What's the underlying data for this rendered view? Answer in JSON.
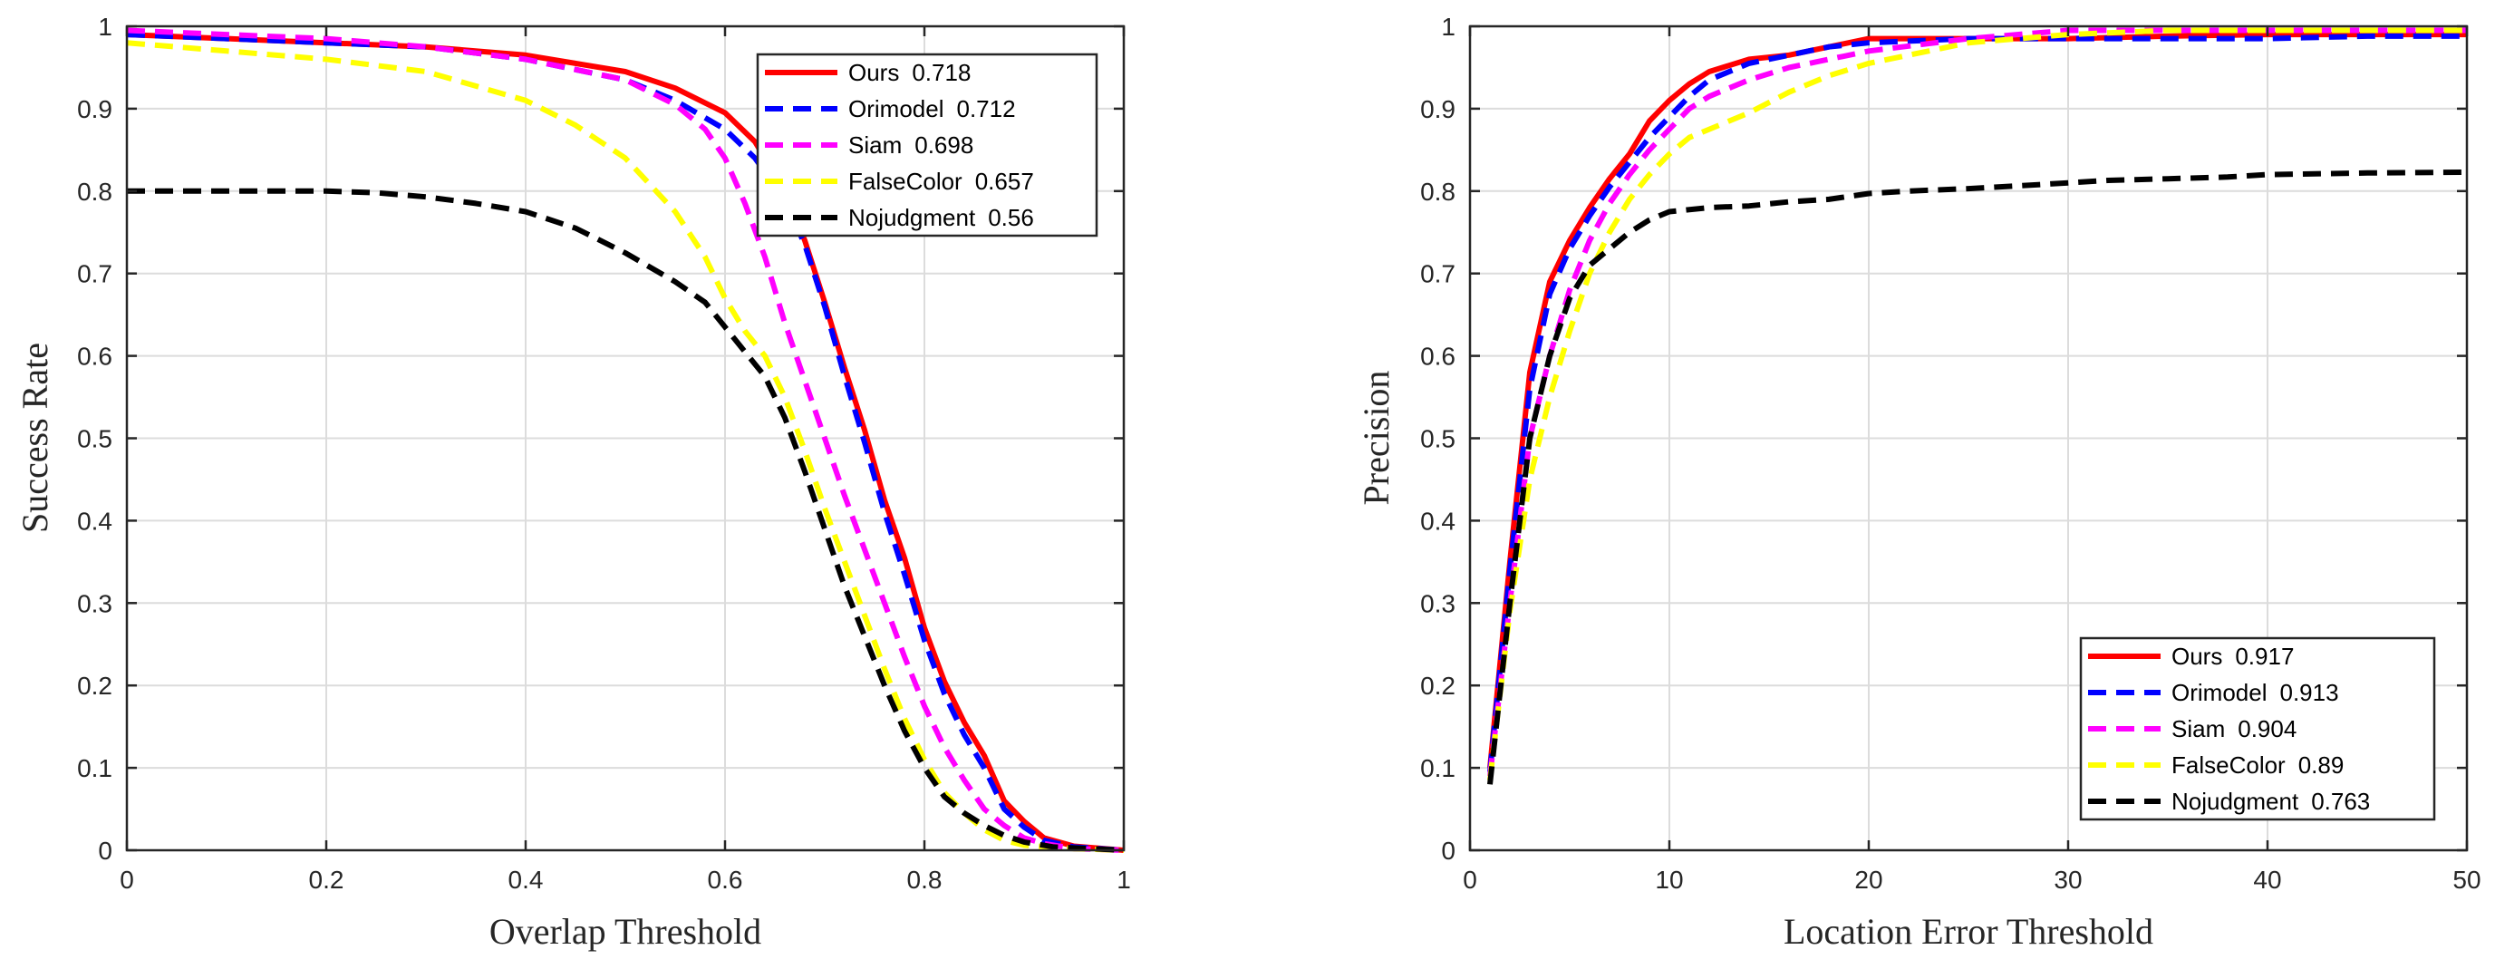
{
  "chart_data": [
    {
      "type": "line",
      "xlabel": "Overlap Threshold",
      "ylabel": "Success Rate",
      "xlim": [
        0,
        1
      ],
      "ylim": [
        0,
        1
      ],
      "xticks": [
        0,
        0.2,
        0.4,
        0.6,
        0.8,
        1
      ],
      "xtick_labels": [
        "0",
        "0.2",
        "0.4",
        "0.6",
        "0.8",
        "1"
      ],
      "yticks": [
        0,
        0.1,
        0.2,
        0.3,
        0.4,
        0.5,
        0.6,
        0.7,
        0.8,
        0.9,
        1
      ],
      "ytick_labels": [
        "0",
        "0.1",
        "0.2",
        "0.3",
        "0.4",
        "0.5",
        "0.6",
        "0.7",
        "0.8",
        "0.9",
        "1"
      ],
      "grid": true,
      "legend_position": "top-right",
      "series": [
        {
          "name": "Ours",
          "score": "0.718",
          "color": "#ff0000",
          "dash": "solid",
          "x": [
            0,
            0.1,
            0.2,
            0.3,
            0.4,
            0.5,
            0.55,
            0.6,
            0.63,
            0.66,
            0.68,
            0.7,
            0.72,
            0.74,
            0.76,
            0.78,
            0.8,
            0.82,
            0.84,
            0.86,
            0.88,
            0.9,
            0.92,
            0.95,
            1
          ],
          "y": [
            0.99,
            0.985,
            0.98,
            0.975,
            0.965,
            0.945,
            0.925,
            0.895,
            0.86,
            0.8,
            0.74,
            0.665,
            0.585,
            0.51,
            0.425,
            0.355,
            0.27,
            0.205,
            0.155,
            0.115,
            0.06,
            0.035,
            0.015,
            0.005,
            0
          ]
        },
        {
          "name": "Orimodel",
          "score": "0.712",
          "color": "#0000ff",
          "dash": "dashed",
          "x": [
            0,
            0.1,
            0.2,
            0.3,
            0.4,
            0.5,
            0.55,
            0.6,
            0.63,
            0.66,
            0.68,
            0.7,
            0.72,
            0.74,
            0.76,
            0.78,
            0.8,
            0.82,
            0.84,
            0.86,
            0.88,
            0.9,
            0.92,
            0.95,
            1
          ],
          "y": [
            0.99,
            0.985,
            0.98,
            0.975,
            0.96,
            0.935,
            0.91,
            0.875,
            0.84,
            0.79,
            0.735,
            0.66,
            0.575,
            0.495,
            0.41,
            0.335,
            0.255,
            0.19,
            0.14,
            0.1,
            0.05,
            0.028,
            0.012,
            0.004,
            0
          ]
        },
        {
          "name": "Siam",
          "score": "0.698",
          "color": "#ff00ff",
          "dash": "dashed",
          "x": [
            0,
            0.1,
            0.2,
            0.3,
            0.4,
            0.5,
            0.55,
            0.58,
            0.6,
            0.62,
            0.64,
            0.66,
            0.68,
            0.7,
            0.72,
            0.74,
            0.76,
            0.78,
            0.8,
            0.82,
            0.84,
            0.86,
            0.88,
            0.9,
            0.92,
            0.95,
            1
          ],
          "y": [
            0.995,
            0.99,
            0.985,
            0.975,
            0.96,
            0.935,
            0.905,
            0.875,
            0.84,
            0.785,
            0.72,
            0.64,
            0.57,
            0.5,
            0.43,
            0.365,
            0.3,
            0.235,
            0.175,
            0.125,
            0.085,
            0.05,
            0.03,
            0.015,
            0.008,
            0.002,
            0
          ]
        },
        {
          "name": "FalseColor",
          "score": "0.657",
          "color": "#ffff00",
          "dash": "dashed",
          "x": [
            0,
            0.1,
            0.2,
            0.3,
            0.4,
            0.45,
            0.5,
            0.55,
            0.58,
            0.6,
            0.62,
            0.64,
            0.66,
            0.68,
            0.7,
            0.72,
            0.74,
            0.76,
            0.78,
            0.8,
            0.82,
            0.84,
            0.86,
            0.88,
            0.9,
            0.95,
            1
          ],
          "y": [
            0.98,
            0.97,
            0.96,
            0.945,
            0.91,
            0.88,
            0.84,
            0.775,
            0.72,
            0.67,
            0.63,
            0.6,
            0.55,
            0.485,
            0.415,
            0.35,
            0.285,
            0.22,
            0.16,
            0.11,
            0.07,
            0.045,
            0.025,
            0.012,
            0.006,
            0.002,
            0
          ]
        },
        {
          "name": "Nojudgment",
          "score": "0.56",
          "color": "#000000",
          "dash": "dashed",
          "x": [
            0,
            0.1,
            0.2,
            0.25,
            0.3,
            0.35,
            0.4,
            0.45,
            0.5,
            0.55,
            0.58,
            0.6,
            0.62,
            0.64,
            0.66,
            0.68,
            0.7,
            0.72,
            0.74,
            0.76,
            0.78,
            0.8,
            0.82,
            0.84,
            0.86,
            0.88,
            0.9,
            0.93,
            1
          ],
          "y": [
            0.8,
            0.8,
            0.8,
            0.798,
            0.793,
            0.785,
            0.775,
            0.755,
            0.725,
            0.69,
            0.665,
            0.635,
            0.605,
            0.575,
            0.525,
            0.46,
            0.39,
            0.32,
            0.26,
            0.2,
            0.145,
            0.1,
            0.065,
            0.045,
            0.03,
            0.018,
            0.01,
            0.004,
            0
          ]
        }
      ]
    },
    {
      "type": "line",
      "xlabel": "Location Error Threshold",
      "ylabel": "Precision",
      "xlim": [
        0,
        50
      ],
      "ylim": [
        0,
        1
      ],
      "xticks": [
        0,
        10,
        20,
        30,
        40,
        50
      ],
      "xtick_labels": [
        "0",
        "10",
        "20",
        "30",
        "40",
        "50"
      ],
      "yticks": [
        0,
        0.1,
        0.2,
        0.3,
        0.4,
        0.5,
        0.6,
        0.7,
        0.8,
        0.9,
        1
      ],
      "ytick_labels": [
        "0",
        "0.1",
        "0.2",
        "0.3",
        "0.4",
        "0.5",
        "0.6",
        "0.7",
        "0.8",
        "0.9",
        "1"
      ],
      "grid": true,
      "legend_position": "bottom-right",
      "series": [
        {
          "name": "Ours",
          "score": "0.917",
          "color": "#ff0000",
          "dash": "solid",
          "x": [
            1,
            2,
            3,
            4,
            5,
            6,
            7,
            8,
            9,
            10,
            11,
            12,
            14,
            16,
            18,
            20,
            25,
            30,
            35,
            40,
            45,
            50
          ],
          "y": [
            0.1,
            0.35,
            0.58,
            0.69,
            0.74,
            0.78,
            0.815,
            0.845,
            0.885,
            0.91,
            0.93,
            0.945,
            0.96,
            0.965,
            0.975,
            0.985,
            0.985,
            0.985,
            0.988,
            0.99,
            0.99,
            0.99
          ]
        },
        {
          "name": "Orimodel",
          "score": "0.913",
          "color": "#0000ff",
          "dash": "dashed",
          "x": [
            1,
            2,
            3,
            4,
            5,
            6,
            7,
            8,
            9,
            10,
            11,
            12,
            14,
            16,
            18,
            20,
            25,
            30,
            35,
            40,
            45,
            50
          ],
          "y": [
            0.095,
            0.34,
            0.56,
            0.675,
            0.73,
            0.77,
            0.805,
            0.835,
            0.865,
            0.89,
            0.915,
            0.935,
            0.955,
            0.965,
            0.975,
            0.98,
            0.985,
            0.985,
            0.985,
            0.985,
            0.988,
            0.988
          ]
        },
        {
          "name": "Siam",
          "score": "0.904",
          "color": "#ff00ff",
          "dash": "dashed",
          "x": [
            1,
            2,
            3,
            4,
            5,
            6,
            7,
            8,
            9,
            10,
            11,
            12,
            14,
            16,
            18,
            20,
            25,
            30,
            35,
            40,
            45,
            50
          ],
          "y": [
            0.09,
            0.3,
            0.5,
            0.6,
            0.68,
            0.74,
            0.785,
            0.82,
            0.85,
            0.875,
            0.9,
            0.915,
            0.935,
            0.95,
            0.96,
            0.97,
            0.985,
            0.995,
            0.995,
            0.995,
            0.995,
            0.995
          ]
        },
        {
          "name": "FalseColor",
          "score": "0.89",
          "color": "#ffff00",
          "dash": "dashed",
          "x": [
            1,
            2,
            3,
            4,
            5,
            6,
            7,
            8,
            9,
            10,
            11,
            12,
            14,
            16,
            18,
            20,
            22,
            25,
            30,
            35,
            40,
            45,
            50
          ],
          "y": [
            0.085,
            0.29,
            0.45,
            0.55,
            0.63,
            0.7,
            0.75,
            0.79,
            0.82,
            0.845,
            0.865,
            0.875,
            0.895,
            0.92,
            0.94,
            0.955,
            0.965,
            0.98,
            0.99,
            0.995,
            0.995,
            0.995,
            0.995
          ]
        },
        {
          "name": "Nojudgment",
          "score": "0.763",
          "color": "#000000",
          "dash": "dashed",
          "x": [
            1,
            2,
            3,
            4,
            5,
            6,
            7,
            8,
            9,
            10,
            12,
            14,
            16,
            18,
            20,
            22,
            25,
            28,
            30,
            32,
            35,
            38,
            40,
            45,
            50
          ],
          "y": [
            0.08,
            0.3,
            0.5,
            0.6,
            0.67,
            0.71,
            0.73,
            0.75,
            0.765,
            0.775,
            0.78,
            0.782,
            0.787,
            0.79,
            0.797,
            0.8,
            0.803,
            0.807,
            0.81,
            0.813,
            0.815,
            0.817,
            0.82,
            0.822,
            0.823
          ]
        }
      ]
    }
  ]
}
